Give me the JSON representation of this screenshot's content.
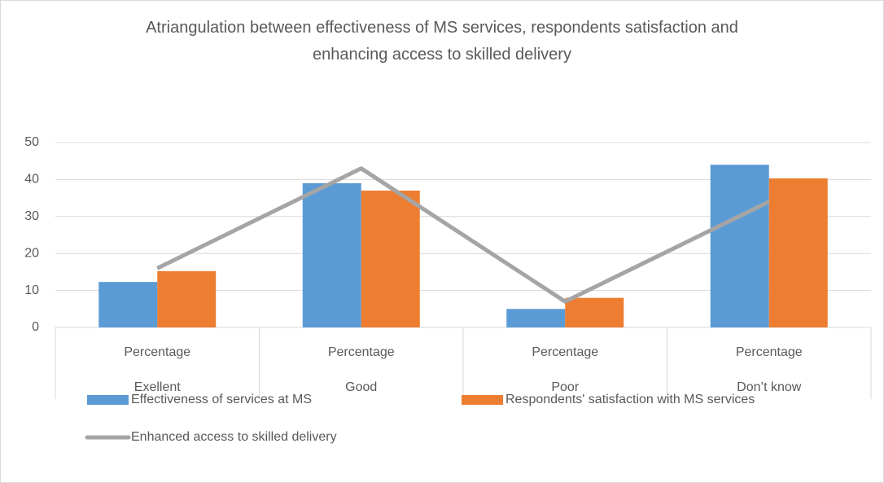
{
  "chart_data": {
    "type": "bar",
    "title": "Atriangulation between effectiveness of MS services, respondents satisfaction and enhancing access to skilled delivery",
    "categories": [
      "Percentage",
      "Percentage",
      "Percentage",
      "Percentage"
    ],
    "category_groups": [
      "Exellent",
      "Good",
      "Poor",
      "Don’t know"
    ],
    "series": [
      {
        "name": "Effectiveness of services at MS",
        "color": "#5b9bd5",
        "type": "bar",
        "values": [
          12.3,
          39,
          5,
          44
        ]
      },
      {
        "name": "Respondents' satisfaction with MS services",
        "color": "#ed7d31",
        "type": "bar",
        "values": [
          15.2,
          37,
          8,
          40.3
        ]
      },
      {
        "name": "Enhanced access to skilled delivery",
        "color": "#a5a5a5",
        "type": "line",
        "values": [
          16,
          43,
          7,
          34
        ]
      }
    ],
    "ylim": [
      0,
      50
    ],
    "yticks": [
      0,
      10,
      20,
      30,
      40,
      50
    ],
    "grid": true,
    "legend": "bottom"
  }
}
